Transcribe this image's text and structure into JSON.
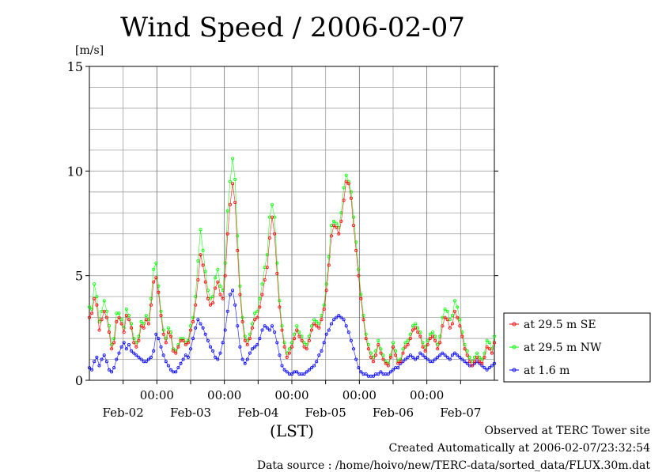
{
  "chart_data": {
    "type": "line",
    "title": "Wind Speed / 2006-02-07",
    "ylabel": "[m/s]",
    "xlabel": "(LST)",
    "ylim": [
      0,
      15
    ],
    "yticks": [
      "0",
      "5",
      "10",
      "15"
    ],
    "x_range_days": [
      0,
      6
    ],
    "time_ticks": [
      "00:00",
      "00:00",
      "00:00",
      "00:00",
      "00:00"
    ],
    "date_ticks": [
      "Feb-02",
      "Feb-03",
      "Feb-04",
      "Feb-05",
      "Feb-06",
      "Feb-07"
    ],
    "grid": true,
    "legend_position": "right",
    "series": [
      {
        "name": "at 29.5 m SE",
        "color": "#ff0000",
        "values": [
          3.0,
          3.2,
          3.9,
          3.6,
          2.4,
          2.9,
          3.3,
          3.0,
          2.3,
          1.5,
          1.8,
          2.8,
          3.0,
          2.7,
          2.3,
          3.1,
          2.9,
          2.5,
          1.8,
          1.6,
          1.9,
          2.6,
          2.5,
          2.9,
          2.7,
          3.6,
          4.7,
          4.9,
          4.2,
          3.1,
          2.2,
          1.8,
          2.3,
          2.1,
          1.4,
          1.3,
          1.6,
          1.9,
          1.9,
          1.7,
          1.8,
          2.4,
          2.8,
          3.6,
          4.8,
          6.0,
          5.5,
          4.7,
          3.9,
          3.6,
          3.7,
          4.4,
          4.7,
          4.1,
          3.9,
          5.0,
          7.0,
          8.4,
          9.4,
          8.5,
          6.2,
          4.1,
          2.8,
          1.9,
          1.7,
          2.0,
          2.5,
          2.9,
          3.0,
          3.5,
          4.1,
          4.8,
          5.4,
          6.8,
          7.8,
          7.0,
          5.1,
          3.5,
          2.4,
          1.6,
          1.1,
          1.3,
          1.6,
          2.0,
          2.4,
          2.1,
          1.9,
          1.6,
          1.5,
          1.9,
          2.4,
          2.7,
          2.6,
          2.5,
          2.9,
          3.4,
          4.3,
          5.5,
          6.9,
          7.4,
          7.3,
          7.0,
          7.6,
          8.6,
          9.5,
          9.4,
          8.7,
          7.4,
          6.2,
          5.0,
          3.9,
          2.9,
          2.0,
          1.5,
          1.1,
          0.9,
          1.2,
          1.7,
          1.3,
          1.0,
          0.8,
          0.7,
          1.1,
          1.6,
          1.2,
          0.8,
          0.9,
          1.3,
          1.6,
          1.7,
          2.0,
          2.4,
          2.5,
          2.3,
          2.1,
          1.6,
          1.4,
          1.7,
          2.0,
          2.1,
          1.9,
          1.5,
          1.8,
          2.6,
          3.0,
          2.9,
          2.5,
          2.7,
          3.3,
          3.0,
          2.6,
          2.1,
          1.5,
          1.2,
          0.9,
          0.7,
          0.9,
          1.1,
          0.9,
          0.8,
          1.1,
          1.6,
          1.5,
          1.3,
          1.8
        ]
      },
      {
        "name": "at 29.5 m NW",
        "color": "#00ff00",
        "values": [
          3.5,
          3.4,
          4.6,
          4.0,
          2.8,
          3.3,
          3.8,
          3.3,
          2.6,
          1.7,
          2.0,
          3.2,
          3.2,
          2.9,
          2.5,
          3.4,
          3.1,
          2.7,
          2.0,
          1.8,
          2.1,
          2.8,
          2.7,
          3.1,
          2.9,
          3.9,
          5.3,
          5.6,
          4.5,
          3.3,
          2.4,
          2.0,
          2.5,
          2.3,
          1.5,
          1.4,
          1.7,
          2.0,
          2.0,
          1.8,
          1.9,
          2.6,
          3.0,
          4.0,
          5.7,
          7.2,
          6.2,
          5.2,
          4.3,
          3.9,
          4.0,
          4.9,
          5.3,
          4.5,
          4.3,
          5.6,
          8.1,
          9.5,
          10.6,
          9.6,
          6.9,
          4.5,
          3.0,
          2.1,
          1.9,
          2.2,
          2.7,
          3.2,
          3.3,
          3.9,
          4.6,
          5.4,
          6.0,
          7.8,
          8.4,
          7.8,
          5.6,
          3.8,
          2.6,
          1.8,
          1.3,
          1.5,
          1.8,
          2.2,
          2.6,
          2.3,
          2.1,
          1.8,
          1.7,
          2.1,
          2.6,
          2.9,
          2.8,
          2.7,
          3.1,
          3.6,
          4.6,
          5.9,
          7.4,
          7.6,
          7.5,
          7.3,
          8.0,
          9.2,
          9.8,
          9.5,
          9.0,
          7.8,
          6.6,
          5.3,
          4.1,
          3.1,
          2.2,
          1.7,
          1.3,
          1.1,
          1.4,
          1.9,
          1.5,
          1.2,
          0.9,
          0.8,
          1.2,
          1.8,
          1.4,
          0.9,
          1.0,
          1.5,
          1.8,
          1.9,
          2.2,
          2.6,
          2.7,
          2.5,
          2.3,
          1.8,
          1.6,
          1.9,
          2.2,
          2.3,
          2.1,
          1.7,
          2.1,
          3.0,
          3.4,
          3.3,
          2.9,
          3.1,
          3.8,
          3.5,
          2.9,
          2.3,
          1.7,
          1.4,
          1.1,
          0.9,
          1.1,
          1.3,
          1.1,
          1.0,
          1.3,
          1.9,
          1.8,
          1.5,
          2.1
        ]
      },
      {
        "name": "at 1.6 m",
        "color": "#0000ff",
        "values": [
          0.6,
          0.5,
          0.9,
          1.1,
          0.7,
          1.0,
          1.2,
          0.9,
          0.5,
          0.4,
          0.6,
          1.0,
          1.3,
          1.6,
          1.8,
          1.5,
          1.7,
          1.4,
          1.3,
          1.2,
          1.1,
          1.0,
          0.9,
          0.9,
          1.0,
          1.1,
          1.4,
          2.2,
          2.0,
          1.6,
          1.2,
          0.9,
          0.7,
          0.5,
          0.4,
          0.4,
          0.6,
          0.8,
          1.0,
          1.2,
          1.1,
          1.5,
          2.0,
          2.5,
          2.9,
          2.7,
          2.5,
          2.2,
          1.9,
          1.6,
          1.4,
          1.1,
          1.0,
          1.3,
          1.8,
          2.4,
          3.3,
          4.1,
          4.3,
          3.6,
          2.6,
          1.6,
          1.0,
          0.8,
          1.0,
          1.3,
          1.5,
          1.6,
          1.7,
          2.0,
          2.4,
          2.6,
          2.5,
          2.4,
          2.6,
          2.3,
          1.8,
          1.2,
          0.7,
          0.5,
          0.4,
          0.3,
          0.3,
          0.4,
          0.4,
          0.3,
          0.3,
          0.3,
          0.4,
          0.5,
          0.6,
          0.7,
          0.9,
          1.2,
          1.4,
          1.8,
          2.2,
          2.4,
          2.7,
          2.9,
          3.0,
          3.1,
          3.0,
          2.9,
          2.6,
          2.3,
          1.9,
          1.5,
          1.0,
          0.6,
          0.4,
          0.3,
          0.3,
          0.2,
          0.2,
          0.2,
          0.3,
          0.3,
          0.4,
          0.3,
          0.3,
          0.3,
          0.4,
          0.5,
          0.6,
          0.6,
          0.8,
          0.9,
          1.0,
          1.1,
          1.2,
          1.1,
          1.0,
          1.1,
          1.3,
          1.2,
          1.1,
          1.0,
          0.9,
          0.9,
          1.0,
          1.1,
          1.2,
          1.3,
          1.2,
          1.1,
          1.0,
          1.2,
          1.3,
          1.2,
          1.1,
          1.0,
          0.9,
          0.8,
          0.7,
          0.7,
          0.8,
          0.9,
          0.8,
          0.7,
          0.6,
          0.5,
          0.6,
          0.7,
          0.8
        ]
      }
    ]
  },
  "footer": {
    "line1": "Observed at TERC Tower site",
    "line2": "Created Automatically at 2006-02-07/23:32:54",
    "line3": "Data source : /home/hoivo/new/TERC-data/sorted_data/FLUX.30m.dat"
  }
}
